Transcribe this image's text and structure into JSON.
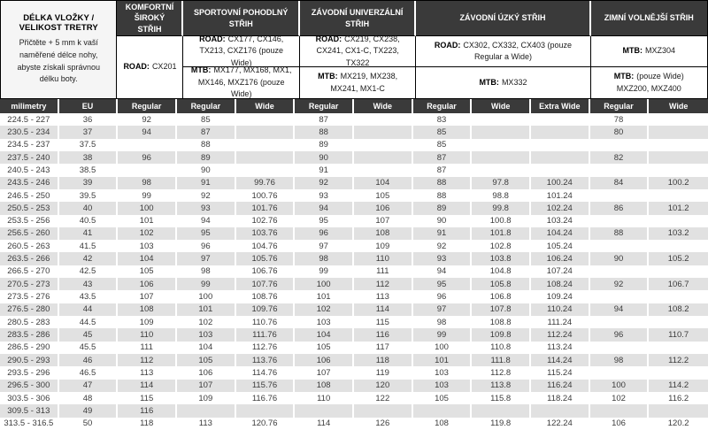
{
  "info_panel": {
    "title": "DÉLKA VLOŽKY / VELIKOST TRETRY",
    "description": "Přičtěte + 5 mm k vaší naměřené délce nohy, abyste získali správnou délku boty."
  },
  "groups": [
    {
      "title": "KOMFORTNÍ ŠIROKÝ STŘIH",
      "lines": [
        {
          "prefix": "ROAD:",
          "models": "CX201"
        }
      ]
    },
    {
      "title": "SPORTOVNÍ POHODLNÝ STŘIH",
      "lines": [
        {
          "prefix": "ROAD:",
          "models": "CX177, CX146, TX213, CXZ176 (pouze Wide)"
        },
        {
          "prefix": "MTB:",
          "models": "MX177, MX168, MX1, MX146, MXZ176 (pouze Wide)"
        }
      ]
    },
    {
      "title": "ZÁVODNÍ UNIVERZÁLNÍ STŘIH",
      "lines": [
        {
          "prefix": "ROAD:",
          "models": "CX219, CX238, CX241, CX1-C, TX223, TX322"
        },
        {
          "prefix": "MTB:",
          "models": "MX219, MX238, MX241, MX1-C"
        }
      ]
    },
    {
      "title": "ZÁVODNÍ ÚZKÝ STŘIH",
      "lines": [
        {
          "prefix": "ROAD:",
          "models": "CX302, CX332, CX403 (pouze Regular a Wide)"
        },
        {
          "prefix": "MTB:",
          "models": "MX332"
        }
      ]
    },
    {
      "title": "ZIMNÍ VOLNĚJŠÍ STŘIH",
      "lines": [
        {
          "prefix": "MTB:",
          "models": "MXZ304"
        },
        {
          "prefix": "MTB:",
          "models": "(pouze Wide) MXZ200, MXZ400"
        }
      ]
    }
  ],
  "column_headers": [
    "milimetry",
    "EU",
    "Regular",
    "Regular",
    "Wide",
    "Regular",
    "Wide",
    "Regular",
    "Wide",
    "Extra Wide",
    "Regular",
    "Wide"
  ],
  "rows": [
    [
      "224.5 - 227",
      "36",
      "92",
      "85",
      "",
      "87",
      "",
      "83",
      "",
      "",
      "78",
      ""
    ],
    [
      "230.5 - 234",
      "37",
      "94",
      "87",
      "",
      "88",
      "",
      "85",
      "",
      "",
      "80",
      ""
    ],
    [
      "234.5 - 237",
      "37.5",
      "",
      "88",
      "",
      "89",
      "",
      "85",
      "",
      "",
      "",
      ""
    ],
    [
      "237.5 - 240",
      "38",
      "96",
      "89",
      "",
      "90",
      "",
      "87",
      "",
      "",
      "82",
      ""
    ],
    [
      "240.5 - 243",
      "38.5",
      "",
      "90",
      "",
      "91",
      "",
      "87",
      "",
      "",
      "",
      ""
    ],
    [
      "243.5 - 246",
      "39",
      "98",
      "91",
      "99.76",
      "92",
      "104",
      "88",
      "97.8",
      "100.24",
      "84",
      "100.2"
    ],
    [
      "246.5 - 250",
      "39.5",
      "99",
      "92",
      "100.76",
      "93",
      "105",
      "88",
      "98.8",
      "101.24",
      "",
      ""
    ],
    [
      "250.5 - 253",
      "40",
      "100",
      "93",
      "101.76",
      "94",
      "106",
      "89",
      "99.8",
      "102.24",
      "86",
      "101.2"
    ],
    [
      "253.5 - 256",
      "40.5",
      "101",
      "94",
      "102.76",
      "95",
      "107",
      "90",
      "100.8",
      "103.24",
      "",
      ""
    ],
    [
      "256.5 - 260",
      "41",
      "102",
      "95",
      "103.76",
      "96",
      "108",
      "91",
      "101.8",
      "104.24",
      "88",
      "103.2"
    ],
    [
      "260.5 - 263",
      "41.5",
      "103",
      "96",
      "104.76",
      "97",
      "109",
      "92",
      "102.8",
      "105.24",
      "",
      ""
    ],
    [
      "263.5 - 266",
      "42",
      "104",
      "97",
      "105.76",
      "98",
      "110",
      "93",
      "103.8",
      "106.24",
      "90",
      "105.2"
    ],
    [
      "266.5 - 270",
      "42.5",
      "105",
      "98",
      "106.76",
      "99",
      "111",
      "94",
      "104.8",
      "107.24",
      "",
      ""
    ],
    [
      "270.5 - 273",
      "43",
      "106",
      "99",
      "107.76",
      "100",
      "112",
      "95",
      "105.8",
      "108.24",
      "92",
      "106.7"
    ],
    [
      "273.5 - 276",
      "43.5",
      "107",
      "100",
      "108.76",
      "101",
      "113",
      "96",
      "106.8",
      "109.24",
      "",
      ""
    ],
    [
      "276.5 - 280",
      "44",
      "108",
      "101",
      "109.76",
      "102",
      "114",
      "97",
      "107.8",
      "110.24",
      "94",
      "108.2"
    ],
    [
      "280.5 - 283",
      "44.5",
      "109",
      "102",
      "110.76",
      "103",
      "115",
      "98",
      "108.8",
      "111.24",
      "",
      ""
    ],
    [
      "283.5 - 286",
      "45",
      "110",
      "103",
      "111.76",
      "104",
      "116",
      "99",
      "109.8",
      "112.24",
      "96",
      "110.7"
    ],
    [
      "286.5 - 290",
      "45.5",
      "111",
      "104",
      "112.76",
      "105",
      "117",
      "100",
      "110.8",
      "113.24",
      "",
      ""
    ],
    [
      "290.5 - 293",
      "46",
      "112",
      "105",
      "113.76",
      "106",
      "118",
      "101",
      "111.8",
      "114.24",
      "98",
      "112.2"
    ],
    [
      "293.5 - 296",
      "46.5",
      "113",
      "106",
      "114.76",
      "107",
      "119",
      "103",
      "112.8",
      "115.24",
      "",
      ""
    ],
    [
      "296.5 - 300",
      "47",
      "114",
      "107",
      "115.76",
      "108",
      "120",
      "103",
      "113.8",
      "116.24",
      "100",
      "114.2"
    ],
    [
      "303.5 - 306",
      "48",
      "115",
      "109",
      "116.76",
      "110",
      "122",
      "105",
      "115.8",
      "118.24",
      "102",
      "116.2"
    ],
    [
      "309.5 - 313",
      "49",
      "116",
      "",
      "",
      "",
      "",
      "",
      "",
      "",
      "",
      ""
    ],
    [
      "313.5 - 316.5",
      "50",
      "118",
      "113",
      "120.76",
      "114",
      "126",
      "108",
      "119.8",
      "122.24",
      "106",
      "120.2"
    ]
  ],
  "colors": {
    "header_bg": "#3a3a3a",
    "stripe": "#e1e1e1",
    "panel_bg": "#f5f5f5"
  }
}
